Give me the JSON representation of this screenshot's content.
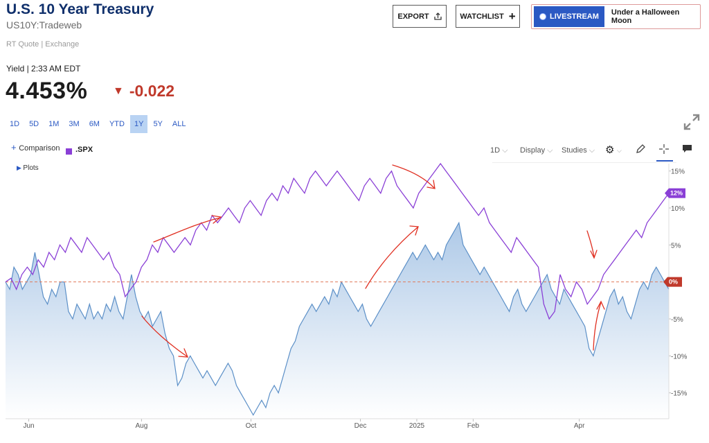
{
  "header": {
    "title": "U.S. 10 Year Treasury",
    "symbol": "US10Y:Tradeweb",
    "quote_source": "RT Quote | Exchange",
    "yield_label": "Yield | 2:33 AM EDT",
    "price": "4.453%",
    "change": "-0.022"
  },
  "buttons": {
    "export": "EXPORT",
    "watchlist": "WATCHLIST",
    "livestream": "LIVESTREAM",
    "live_show": "Under a Halloween Moon"
  },
  "ranges": [
    "1D",
    "5D",
    "1M",
    "3M",
    "6M",
    "YTD",
    "1Y",
    "5Y",
    "ALL"
  ],
  "active_range": "1Y",
  "toolbar": {
    "comparison": "Comparison",
    "comparison_symbol": ".SPX",
    "plots": "Plots",
    "interval": "1D",
    "display": "Display",
    "studies": "Studies"
  },
  "colors": {
    "yield_line": "#5b8fc7",
    "spx_line": "#8a3fd6",
    "baseline": "#e0795a",
    "accent": "#2b59c3",
    "annotation": "#e03022"
  },
  "chart_data": {
    "type": "line",
    "x_ticks": [
      "Jun",
      "Aug",
      "Oct",
      "Dec",
      "2025",
      "Feb",
      "Apr"
    ],
    "y_ticks": [
      "15%",
      "10%",
      "5%",
      "0%",
      "-5%",
      "-10%",
      "-15%"
    ],
    "ylim": [
      -18.5,
      16
    ],
    "y_unit": "% change",
    "series": [
      {
        "style": "area",
        "values": [
          0,
          -1,
          2,
          1,
          -1,
          0,
          1,
          4,
          1,
          -2,
          -3,
          -1,
          -2,
          0,
          0,
          -4,
          -5,
          -3,
          -4,
          -5,
          -3,
          -5,
          -4,
          -5,
          -3,
          -4,
          -2,
          -4,
          -5,
          -2,
          1,
          -2,
          -4,
          -5,
          -4,
          -6,
          -5,
          -4,
          -7,
          -9,
          -10,
          -14,
          -13,
          -11,
          -10,
          -11,
          -12,
          -13,
          -12,
          -13,
          -14,
          -13,
          -12,
          -11,
          -12,
          -14,
          -15,
          -16,
          -17,
          -18,
          -17,
          -16,
          -17,
          -15,
          -14,
          -15,
          -13,
          -11,
          -9,
          -8,
          -6,
          -5,
          -4,
          -3,
          -4,
          -3,
          -2,
          -3,
          -1,
          -2,
          0,
          -1,
          -2,
          -3,
          -4,
          -3,
          -5,
          -6,
          -5,
          -4,
          -3,
          -2,
          -1,
          0,
          1,
          2,
          3,
          4,
          3,
          4,
          5,
          4,
          3,
          4,
          3,
          5,
          6,
          7,
          8,
          5,
          4,
          3,
          2,
          1,
          2,
          1,
          0,
          -1,
          -2,
          -3,
          -4,
          -2,
          -1,
          -3,
          -4,
          -3,
          -2,
          -1,
          0,
          1,
          -1,
          -2,
          -3,
          -1,
          -2,
          -3,
          -4,
          -5,
          -6,
          -9,
          -10,
          -8,
          -6,
          -4,
          -2,
          -1,
          -3,
          -2,
          -4,
          -5,
          -3,
          -1,
          0,
          -1,
          1,
          2,
          1,
          0,
          -1
        ]
      },
      {
        "name": ".SPX",
        "style": "line",
        "values": [
          0,
          0.5,
          -1,
          1,
          2,
          1,
          3,
          2,
          4,
          3,
          5,
          4,
          6,
          5,
          4,
          6,
          5,
          4,
          3,
          4,
          2,
          1,
          -2,
          -1,
          0,
          2,
          3,
          5,
          4,
          6,
          5,
          4,
          5,
          6,
          5,
          7,
          8,
          7,
          9,
          8,
          9,
          10,
          9,
          8,
          10,
          11,
          10,
          9,
          11,
          12,
          11,
          13,
          12,
          14,
          13,
          12,
          14,
          15,
          14,
          13,
          14,
          15,
          14,
          13,
          12,
          11,
          13,
          14,
          13,
          12,
          14,
          15,
          13,
          12,
          11,
          10,
          12,
          13,
          14,
          15,
          16,
          15,
          14,
          13,
          12,
          11,
          10,
          9,
          10,
          8,
          7,
          6,
          5,
          4,
          6,
          5,
          4,
          3,
          2,
          -3,
          -5,
          -4,
          1,
          -1,
          -2,
          0,
          -1,
          -3,
          -2,
          -1,
          1,
          2,
          3,
          4,
          5,
          6,
          7,
          6,
          8,
          9,
          10,
          11,
          12
        ]
      }
    ],
    "last_label": "12%",
    "zero_label": "0%"
  }
}
